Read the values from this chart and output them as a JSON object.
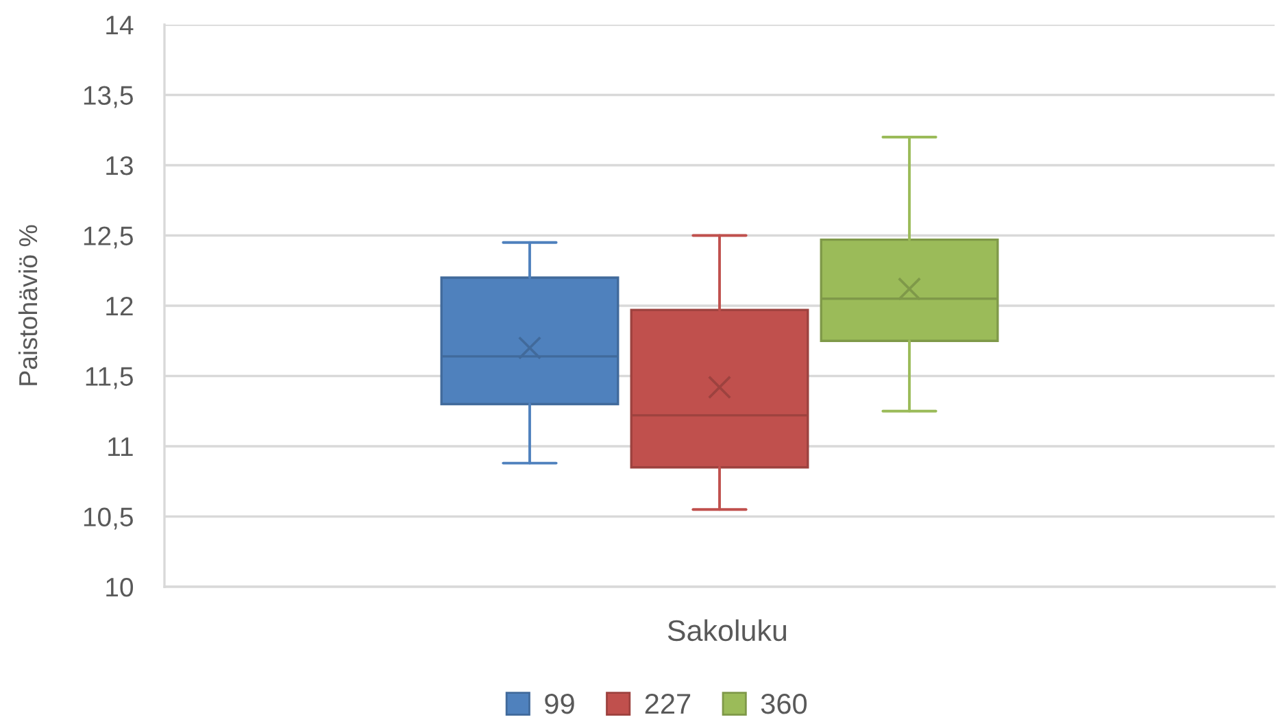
{
  "chart_data": {
    "type": "box",
    "xlabel": "Sakoluku",
    "ylabel": "Paistohäviö %",
    "categories": [
      null
    ],
    "series": [
      {
        "name": "99",
        "color": "#4f81bd",
        "boxes": [
          {
            "low": 10.88,
            "q1": 11.3,
            "median": 11.64,
            "q3": 12.2,
            "high": 12.45,
            "mean": 11.7
          }
        ]
      },
      {
        "name": "227",
        "color": "#c0504d",
        "boxes": [
          {
            "low": 10.55,
            "q1": 10.85,
            "median": 11.22,
            "q3": 11.97,
            "high": 12.5,
            "mean": 11.42
          }
        ]
      },
      {
        "name": "360",
        "color": "#9bbb59",
        "boxes": [
          {
            "low": 11.25,
            "q1": 11.75,
            "median": 12.05,
            "q3": 12.47,
            "high": 13.2,
            "mean": 12.12
          }
        ]
      }
    ],
    "ylim": [
      10,
      14
    ],
    "yticks": [
      10,
      {
        "value": 10.5,
        "label": "10,5"
      },
      11,
      {
        "value": 11.5,
        "label": "11,5"
      },
      12,
      {
        "value": 12.5,
        "label": "12,5"
      },
      13,
      {
        "value": 13.5,
        "label": "13,5"
      },
      14
    ],
    "grid": "y",
    "legend": "bottom"
  }
}
